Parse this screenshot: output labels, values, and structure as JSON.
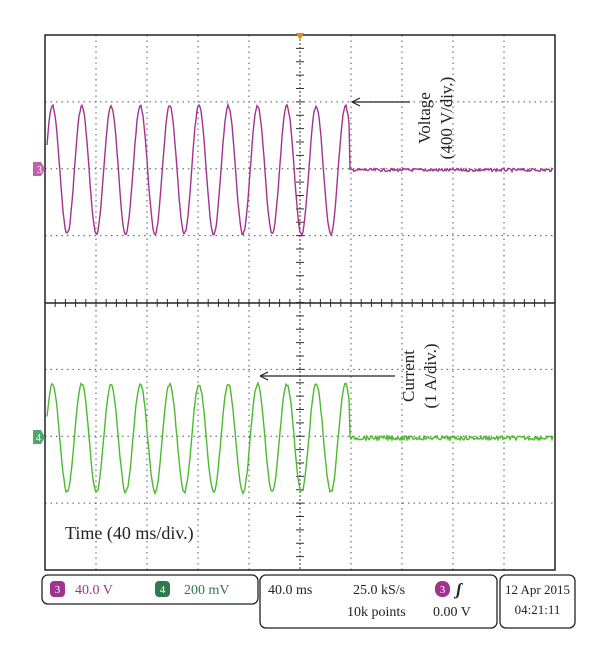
{
  "screen": {
    "voltage_label": {
      "name": "Voltage",
      "scale": "(400 V/div.)"
    },
    "current_label": {
      "name": "Current",
      "scale": "(1 A/div.)"
    },
    "time_label": "Time (40 ms/div.)",
    "channel_markers": [
      "3",
      "4"
    ]
  },
  "status_bar": {
    "channels": [
      {
        "id": "3",
        "scale": "40.0 V"
      },
      {
        "id": "4",
        "scale": "200 mV"
      }
    ],
    "acquisition": {
      "timebase": "40.0 ms",
      "sample_rate": "25.0 kS/s",
      "record_length": "10k points"
    },
    "trigger": {
      "channel": "3",
      "slope": "ʃ",
      "level": "0.00 V"
    },
    "timestamp": {
      "date": "12 Apr 2015",
      "time": "04:21:11"
    }
  }
}
